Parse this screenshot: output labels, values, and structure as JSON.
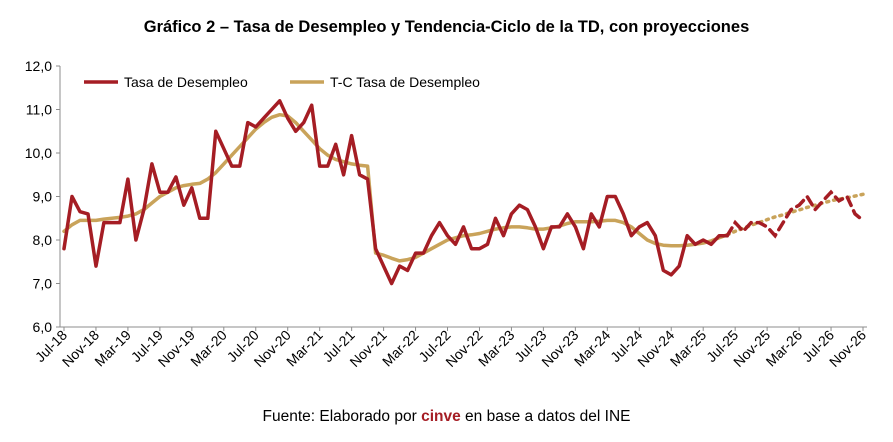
{
  "chart_data": {
    "type": "line",
    "title": "Gráfico 2 – Tasa de Desempleo y Tendencia-Ciclo de la TD, con proyecciones",
    "xlabel": "",
    "ylabel": "",
    "ylim": [
      6.0,
      12.0
    ],
    "yticks": [
      "6,0",
      "7,0",
      "8,0",
      "9,0",
      "10,0",
      "11,0",
      "12,0"
    ],
    "grid": false,
    "legend_position": "top-left",
    "x_start": "Jul-18",
    "x_end": "Dec-26",
    "x_tick_labels": [
      "Jul-18",
      "Nov-18",
      "Mar-19",
      "Jul-19",
      "Nov-19",
      "Mar-20",
      "Jul-20",
      "Nov-20",
      "Mar-21",
      "Jul-21",
      "Nov-21",
      "Mar-22",
      "Jul-22",
      "Nov-22",
      "Mar-23",
      "Jul-23",
      "Nov-23",
      "Mar-24",
      "Jul-24",
      "Nov-24",
      "Mar-25",
      "Jul-25",
      "Nov-25",
      "Mar-26",
      "Jul-26",
      "Nov-26"
    ],
    "series": [
      {
        "name": "Tasa de Desempleo",
        "color": "#a51d24",
        "style": "solid then dashed (projection)",
        "values": [
          7.8,
          9.0,
          8.65,
          8.6,
          7.4,
          8.4,
          8.4,
          8.4,
          9.4,
          8.0,
          8.7,
          9.75,
          9.1,
          9.1,
          9.45,
          8.8,
          9.2,
          8.5,
          8.5,
          10.5,
          10.1,
          9.7,
          9.7,
          10.7,
          10.6,
          10.8,
          11.0,
          11.2,
          10.8,
          10.5,
          10.7,
          11.1,
          9.7,
          9.7,
          10.2,
          9.5,
          10.4,
          9.5,
          9.4,
          7.8,
          7.4,
          7.0,
          7.4,
          7.3,
          7.7,
          7.7,
          8.1,
          8.4,
          8.1,
          7.9,
          8.3,
          7.8,
          7.8,
          7.9,
          8.5,
          8.1,
          8.6,
          8.8,
          8.7,
          8.3,
          7.8,
          8.3,
          8.3,
          8.6,
          8.3,
          7.8,
          8.6,
          8.3,
          9.0,
          9.0,
          8.6,
          8.1,
          8.3,
          8.4,
          8.1,
          7.3,
          7.2,
          7.4,
          8.1,
          7.9,
          8.0,
          7.9,
          8.1,
          8.1,
          8.4,
          8.2,
          8.4,
          8.4,
          8.3,
          8.1,
          8.4,
          8.7,
          8.8,
          9.0,
          8.7,
          8.9,
          9.1,
          8.9,
          9.0,
          8.6,
          8.45
        ],
        "projection_starts_at": "Jun-25"
      },
      {
        "name": "T-C Tasa de Desempleo",
        "color": "#c9a35a",
        "style": "solid then dotted (projection)",
        "values": [
          8.2,
          8.35,
          8.45,
          8.45,
          8.45,
          8.48,
          8.5,
          8.52,
          8.55,
          8.6,
          8.7,
          8.85,
          9.0,
          9.1,
          9.2,
          9.25,
          9.28,
          9.3,
          9.4,
          9.55,
          9.75,
          9.95,
          10.15,
          10.35,
          10.55,
          10.7,
          10.82,
          10.88,
          10.85,
          10.7,
          10.5,
          10.3,
          10.1,
          9.95,
          9.85,
          9.8,
          9.75,
          9.72,
          9.7,
          7.7,
          7.65,
          7.58,
          7.52,
          7.55,
          7.6,
          7.7,
          7.8,
          7.9,
          8.0,
          8.05,
          8.1,
          8.12,
          8.15,
          8.2,
          8.25,
          8.28,
          8.3,
          8.3,
          8.28,
          8.25,
          8.25,
          8.28,
          8.32,
          8.38,
          8.42,
          8.42,
          8.42,
          8.43,
          8.45,
          8.45,
          8.4,
          8.3,
          8.15,
          8.0,
          7.92,
          7.88,
          7.87,
          7.87,
          7.88,
          7.9,
          7.93,
          7.98,
          8.05,
          8.12,
          8.2,
          8.27,
          8.34,
          8.4,
          8.47,
          8.53,
          8.58,
          8.64,
          8.69,
          8.75,
          8.8,
          8.85,
          8.9,
          8.94,
          8.97,
          9.01,
          9.05
        ],
        "projection_starts_at": "Jun-25"
      }
    ]
  },
  "source": {
    "prefix": "Fuente: Elaborado por ",
    "brand": "cinve",
    "suffix": " en base a datos del INE"
  }
}
